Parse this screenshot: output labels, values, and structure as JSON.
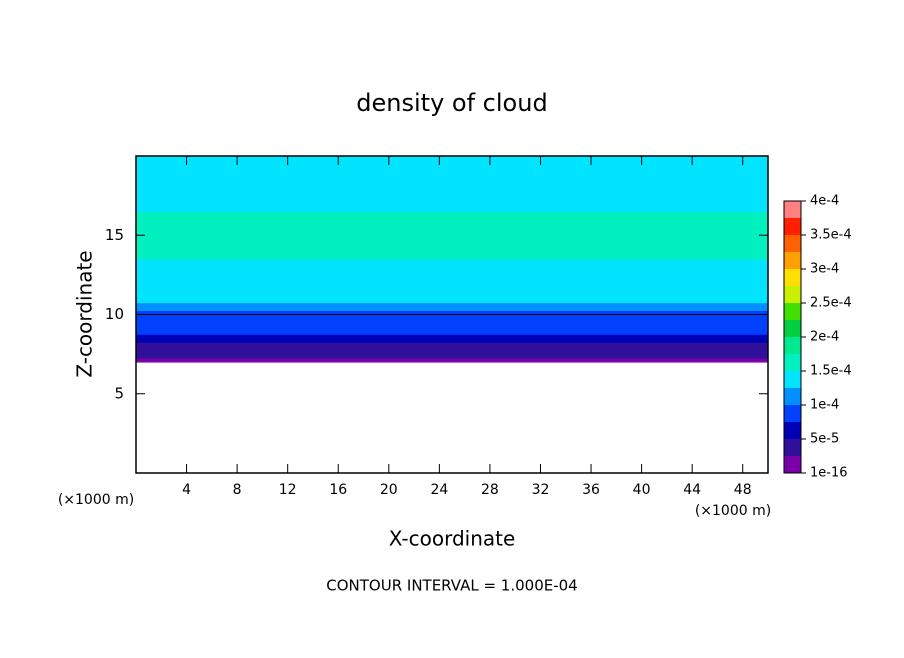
{
  "chart_data": {
    "type": "contour",
    "title": "density of cloud",
    "xlabel": "X-coordinate",
    "ylabel": "Z-coordinate",
    "x_unit": "(×1000 m)",
    "y_unit": "(×1000 m)",
    "annotation": "CONTOUR INTERVAL = 1.000E-04",
    "xlim": [
      0,
      50
    ],
    "ylim": [
      0,
      20
    ],
    "xticks": [
      4,
      8,
      12,
      16,
      20,
      24,
      28,
      32,
      36,
      40,
      44,
      48
    ],
    "yticks": [
      5,
      10,
      15
    ],
    "z": [
      7,
      7.5,
      8,
      8.5,
      9,
      9.5,
      10,
      10.5,
      11,
      12,
      13,
      14,
      15,
      16,
      17,
      18,
      19,
      20
    ],
    "values": [
      1e-05,
      3e-05,
      5e-05,
      7e-05,
      8e-05,
      9e-05,
      0.0001,
      0.000115,
      0.00013,
      0.00014,
      0.00015,
      0.000155,
      0.00016,
      0.000155,
      0.00015,
      0.000145,
      0.00014,
      0.00014
    ],
    "contour_lines": [
      0.0001
    ],
    "colorbar": {
      "levels": [
        1e-16,
        2.5e-05,
        5e-05,
        7.5e-05,
        0.0001,
        0.000125,
        0.00015,
        0.000175,
        0.0002,
        0.000225,
        0.00025,
        0.000275,
        0.0003,
        0.000325,
        0.00035,
        0.000375,
        0.0004
      ],
      "colors": [
        "#7a00a8",
        "#30109a",
        "#0000b4",
        "#0040ff",
        "#0090ff",
        "#00e4ff",
        "#00f0c0",
        "#00e890",
        "#00d040",
        "#40e000",
        "#c8f000",
        "#ffe000",
        "#ffa000",
        "#ff6000",
        "#ff2000",
        "#ff8080"
      ],
      "ticks": [
        {
          "value": 1e-16,
          "label": "1e-16"
        },
        {
          "value": 5e-05,
          "label": "5e-5"
        },
        {
          "value": 0.0001,
          "label": "1e-4"
        },
        {
          "value": 0.00015,
          "label": "1.5e-4"
        },
        {
          "value": 0.0002,
          "label": "2e-4"
        },
        {
          "value": 0.00025,
          "label": "2.5e-4"
        },
        {
          "value": 0.0003,
          "label": "3e-4"
        },
        {
          "value": 0.00035,
          "label": "3.5e-4"
        },
        {
          "value": 0.0004,
          "label": "4e-4"
        }
      ]
    }
  }
}
